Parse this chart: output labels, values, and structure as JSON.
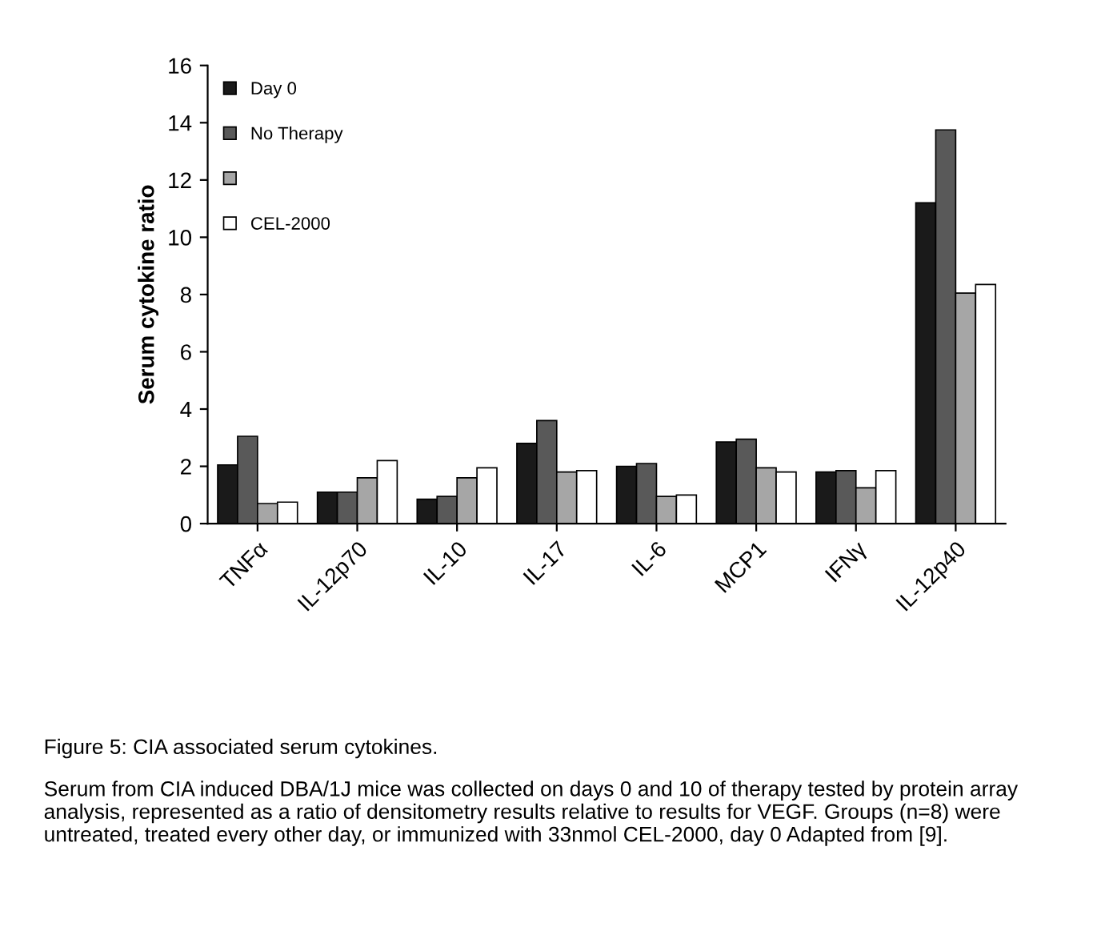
{
  "chart_data": {
    "type": "bar",
    "ylabel": "Serum cytokine ratio",
    "categories": [
      "TNFα",
      "IL-12p70",
      "IL-10",
      "IL-17",
      "IL-6",
      "MCP1",
      "IFNγ",
      "IL-12p40"
    ],
    "series": [
      {
        "name": "Day 0",
        "color": "#1a1a1a",
        "values": [
          2.05,
          1.1,
          0.85,
          2.8,
          2.0,
          2.85,
          1.8,
          11.2
        ]
      },
      {
        "name": "No Therapy",
        "color": "#595959",
        "values": [
          3.05,
          1.1,
          0.95,
          3.6,
          2.1,
          2.95,
          1.85,
          13.75
        ]
      },
      {
        "color": "#a6a6a6",
        "values": [
          0.7,
          1.6,
          1.6,
          1.8,
          0.95,
          1.95,
          1.25,
          8.05
        ]
      },
      {
        "name": "CEL-2000",
        "color": "#ffffff",
        "values": [
          0.75,
          2.2,
          1.95,
          1.85,
          1.0,
          1.8,
          1.85,
          8.35
        ]
      }
    ],
    "ylim": [
      0,
      16
    ],
    "yticks": [
      0,
      2,
      4,
      6,
      8,
      10,
      12,
      14,
      16
    ],
    "grid": false,
    "legend": "top left",
    "annotations": [
      "Figure 5: CIA associated serum cytokines.",
      "Serum from CIA induced DBA/1J mice was collected on days 0 and 10 of therapy tested by protein array analysis, represented as a ratio of densitometry results relative to results for VEGF. Groups (n=8) were untreated, treated every other day, or immunized with 33nmol CEL-2000, day 0 Adapted from [9]."
    ]
  }
}
